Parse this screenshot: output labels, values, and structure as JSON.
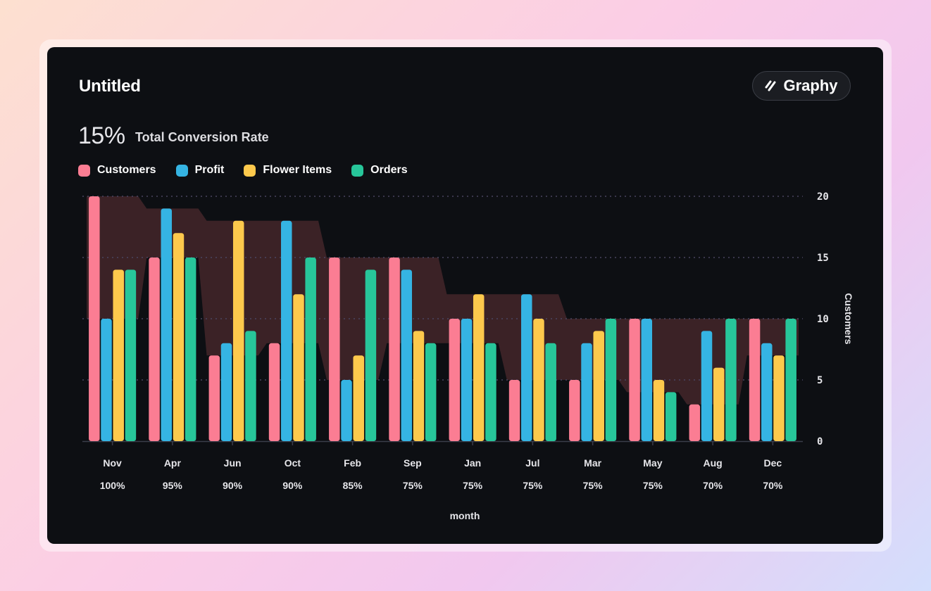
{
  "card": {
    "title": "Untitled",
    "brand": "Graphy",
    "kpi_value": "15%",
    "kpi_label": "Total Conversion Rate"
  },
  "colors": {
    "Customers": "#fb7d93",
    "Profit": "#35b4e3",
    "Flower Items": "#fdc94c",
    "Orders": "#27c69a",
    "band": "#402529",
    "grid": "#4a4560",
    "axis_text": "#e6e6ea"
  },
  "chart_data": {
    "type": "bar",
    "title": "",
    "xlabel": "month",
    "ylabel": "Customers",
    "ylim": [
      0,
      20
    ],
    "yticks": [
      "0",
      "5",
      "10",
      "15",
      "20"
    ],
    "y_axis_side": "right",
    "grid": true,
    "legend_position": "top-left",
    "categories": [
      "Nov",
      "Apr",
      "Jun",
      "Oct",
      "Feb",
      "Sep",
      "Jan",
      "Jul",
      "Mar",
      "May",
      "Aug",
      "Dec"
    ],
    "category_sublabels": [
      "100%",
      "95%",
      "90%",
      "90%",
      "85%",
      "75%",
      "75%",
      "75%",
      "75%",
      "75%",
      "70%",
      "70%"
    ],
    "series": [
      {
        "name": "Customers",
        "values": [
          20,
          15,
          7,
          8,
          15,
          15,
          10,
          5,
          5,
          10,
          3,
          10
        ]
      },
      {
        "name": "Profit",
        "values": [
          10,
          19,
          8,
          18,
          5,
          14,
          10,
          12,
          8,
          10,
          9,
          8
        ]
      },
      {
        "name": "Flower Items",
        "values": [
          14,
          17,
          18,
          12,
          7,
          9,
          12,
          10,
          9,
          5,
          6,
          7
        ]
      },
      {
        "name": "Orders",
        "values": [
          14,
          15,
          9,
          15,
          14,
          8,
          8,
          8,
          10,
          4,
          10,
          10
        ]
      }
    ]
  }
}
